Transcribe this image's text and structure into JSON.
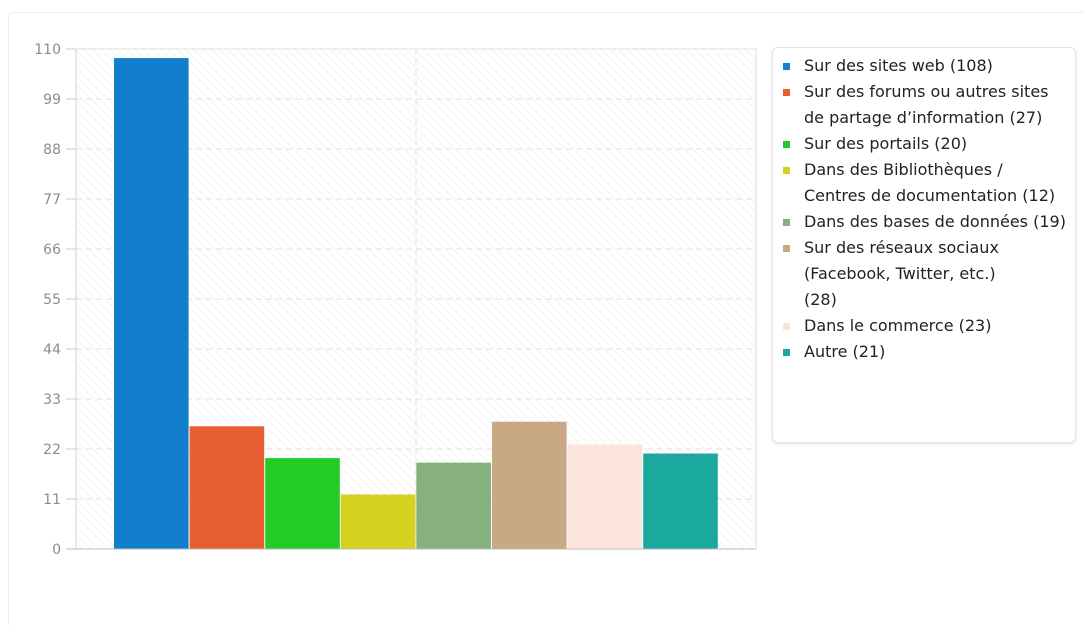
{
  "chart_data": {
    "type": "bar",
    "categories": [
      "Sur des sites web",
      "Sur des forums ou autres sites de partage d’information",
      "Sur des portails",
      "Dans des Bibliothèques / Centres de documentation",
      "Dans des bases de données",
      "Sur des réseaux sociaux (Facebook, Twitter, etc.)",
      "Dans le commerce",
      "Autre"
    ],
    "values": [
      108,
      27,
      20,
      12,
      19,
      28,
      23,
      21
    ],
    "colors": [
      "#117fcb",
      "#e85e33",
      "#22cc25",
      "#d2d21f",
      "#86b17f",
      "#c8a983",
      "#fbe4dc",
      "#1aa89f"
    ],
    "ylim": [
      0,
      110
    ],
    "yticks": [
      "0",
      "11",
      "22",
      "33",
      "44",
      "55",
      "66",
      "77",
      "88",
      "99",
      "110"
    ],
    "grid": true,
    "legend_position": "right",
    "legend": [
      "Sur des sites web (108)",
      "Sur des forums ou autres sites de partage d’information (27)",
      "Sur des portails (20)",
      "Dans des Bibliothèques / Centres de documentation (12)",
      "Dans des bases de données (19)",
      "Sur des réseaux sociaux (Facebook, Twitter, etc.)\n(28)",
      "Dans le commerce (23)",
      "Autre (21)"
    ]
  }
}
